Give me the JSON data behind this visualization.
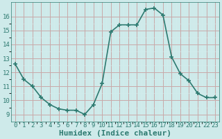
{
  "x": [
    0,
    1,
    2,
    3,
    4,
    5,
    6,
    7,
    8,
    9,
    10,
    11,
    12,
    13,
    14,
    15,
    16,
    17,
    18,
    19,
    20,
    21,
    22,
    23
  ],
  "y": [
    12.6,
    11.5,
    11.0,
    10.2,
    9.7,
    9.4,
    9.3,
    9.3,
    9.0,
    9.7,
    11.2,
    14.9,
    15.4,
    15.4,
    15.4,
    16.5,
    16.6,
    16.1,
    13.1,
    11.9,
    11.4,
    10.5,
    10.2,
    10.2
  ],
  "line_color": "#2d7a70",
  "marker": "+",
  "marker_size": 5,
  "bg_color": "#ceeaea",
  "grid_color_major": "#c8a8a8",
  "grid_color_minor": "#d4ecec",
  "xlabel": "Humidex (Indice chaleur)",
  "xlabel_fontsize": 8,
  "xlim": [
    -0.5,
    23.5
  ],
  "ylim": [
    8.5,
    17.0
  ],
  "yticks": [
    9,
    10,
    11,
    12,
    13,
    14,
    15,
    16
  ],
  "xticks": [
    0,
    1,
    2,
    3,
    4,
    5,
    6,
    7,
    8,
    9,
    10,
    11,
    12,
    13,
    14,
    15,
    16,
    17,
    18,
    19,
    20,
    21,
    22,
    23
  ],
  "tick_label_color": "#2d7a70",
  "label_fontsize": 6.5,
  "line_width": 1.2,
  "marker_linewidth": 1.2
}
